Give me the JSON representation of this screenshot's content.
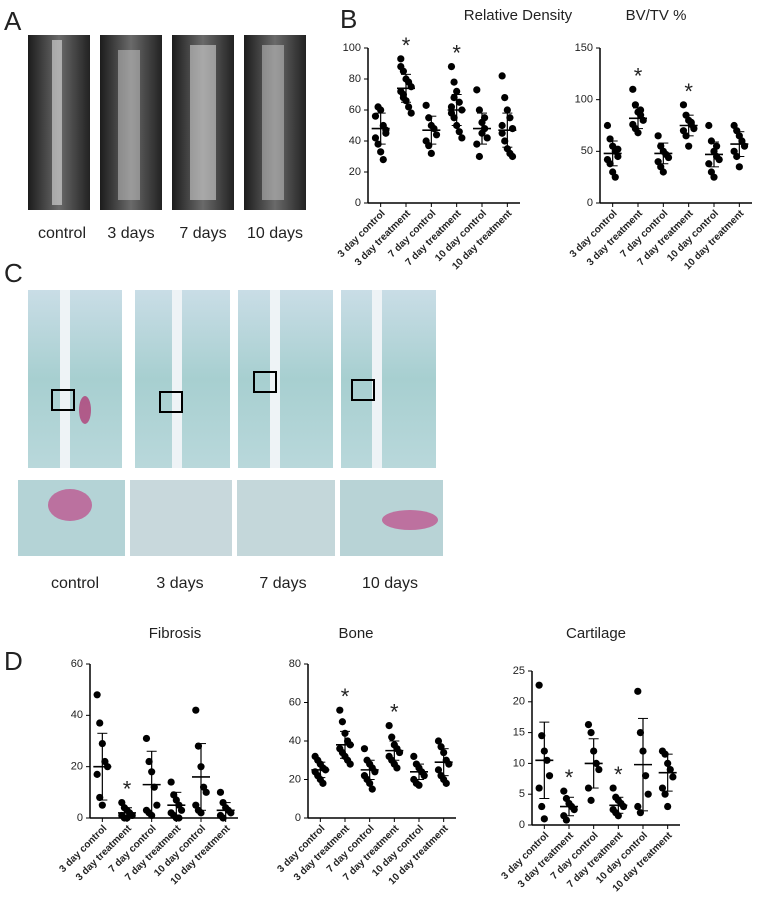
{
  "panels": {
    "labels": [
      "A",
      "B",
      "C",
      "D"
    ],
    "captions_a": [
      "control",
      "3  days",
      "7 days",
      "10 days"
    ],
    "captions_c": [
      "control",
      "3  days",
      "7 days",
      "10 days"
    ]
  },
  "chart_data": [
    {
      "type": "dot",
      "title": "Relative Density",
      "categories": [
        "3 day control",
        "3 day treatment",
        "7 day control",
        "7 day treatment",
        "10 day control",
        "10 day treatment"
      ],
      "points": [
        [
          56,
          62,
          60,
          50,
          47,
          42,
          38,
          33,
          28,
          45
        ],
        [
          93,
          85,
          80,
          78,
          75,
          72,
          70,
          66,
          62,
          58,
          88,
          68
        ],
        [
          63,
          55,
          50,
          48,
          44,
          40,
          37,
          32
        ],
        [
          88,
          78,
          72,
          65,
          60,
          58,
          55,
          50,
          46,
          42,
          62,
          68
        ],
        [
          73,
          60,
          52,
          48,
          42,
          38,
          30,
          45,
          55
        ],
        [
          82,
          68,
          60,
          55,
          48,
          45,
          40,
          35,
          32,
          30,
          50
        ]
      ],
      "means": [
        48,
        74,
        47,
        60,
        48,
        47
      ],
      "sd": [
        10,
        9,
        9,
        10,
        10,
        11
      ],
      "ylim": [
        0,
        100
      ],
      "yticks": [
        0,
        20,
        40,
        60,
        80,
        100
      ],
      "annotations": [
        {
          "category": "3 day treatment",
          "text": "*"
        },
        {
          "category": "7 day treatment",
          "text": "*"
        }
      ]
    },
    {
      "type": "dot",
      "title": "BV/TV %",
      "categories": [
        "3 day control",
        "3 day treatment",
        "7 day control",
        "7 day treatment",
        "10 day control",
        "10 day treatment"
      ],
      "points": [
        [
          75,
          62,
          55,
          50,
          45,
          42,
          38,
          30,
          25,
          52
        ],
        [
          110,
          95,
          88,
          85,
          80,
          76,
          72,
          68,
          90
        ],
        [
          65,
          55,
          50,
          47,
          44,
          40,
          35,
          30
        ],
        [
          95,
          85,
          80,
          76,
          72,
          70,
          65,
          55,
          78
        ],
        [
          75,
          60,
          50,
          45,
          42,
          38,
          30,
          25,
          55
        ],
        [
          75,
          70,
          65,
          60,
          55,
          50,
          45,
          35
        ]
      ],
      "means": [
        48,
        82,
        48,
        75,
        47,
        57
      ],
      "sd": [
        12,
        10,
        10,
        10,
        12,
        12
      ],
      "ylim": [
        0,
        150
      ],
      "yticks": [
        0,
        50,
        100,
        150
      ],
      "annotations": [
        {
          "category": "3 day treatment",
          "text": "*"
        },
        {
          "category": "7 day treatment",
          "text": "*"
        }
      ]
    },
    {
      "type": "dot",
      "title": "Fibrosis",
      "categories": [
        "3 day control",
        "3 day treatment",
        "7 day control",
        "7 day treatment",
        "10 day control",
        "10 day treatment"
      ],
      "points": [
        [
          48,
          37,
          29,
          22,
          20,
          17,
          8,
          5
        ],
        [
          6,
          4,
          3,
          2,
          1,
          1,
          0,
          0
        ],
        [
          31,
          22,
          18,
          12,
          5,
          3,
          2,
          1
        ],
        [
          14,
          9,
          7,
          5,
          3,
          2,
          1,
          0,
          0
        ],
        [
          42,
          28,
          20,
          12,
          10,
          5,
          3,
          2
        ],
        [
          10,
          6,
          4,
          3,
          2,
          1,
          0
        ]
      ],
      "means": [
        20,
        2,
        13,
        5,
        16,
        3
      ],
      "sd": [
        13,
        2,
        13,
        5,
        13,
        3
      ],
      "ylim": [
        0,
        60
      ],
      "yticks": [
        0,
        20,
        40,
        60
      ],
      "annotations": [
        {
          "category": "3 day treatment",
          "text": "*"
        }
      ]
    },
    {
      "type": "dot",
      "title": "Bone",
      "categories": [
        "3 day control",
        "3 day treatment",
        "7 day control",
        "7 day treatment",
        "10 day control",
        "10 day treatment"
      ],
      "points": [
        [
          32,
          30,
          28,
          26,
          25,
          24,
          22,
          20,
          18
        ],
        [
          56,
          50,
          44,
          40,
          38,
          36,
          34,
          32,
          30,
          28
        ],
        [
          36,
          30,
          28,
          26,
          24,
          22,
          20,
          18,
          15
        ],
        [
          48,
          42,
          38,
          36,
          34,
          32,
          30,
          28,
          26
        ],
        [
          32,
          28,
          26,
          24,
          22,
          20,
          18,
          17
        ],
        [
          40,
          37,
          34,
          30,
          28,
          25,
          22,
          20,
          18
        ]
      ],
      "means": [
        25,
        38,
        25,
        35,
        24,
        29
      ],
      "sd": [
        4,
        7,
        5,
        5,
        4,
        7
      ],
      "ylim": [
        0,
        80
      ],
      "yticks": [
        0,
        20,
        40,
        60,
        80
      ],
      "annotations": [
        {
          "category": "3 day treatment",
          "text": "*"
        },
        {
          "category": "7 day treatment",
          "text": "*"
        }
      ]
    },
    {
      "type": "dot",
      "title": "Cartilage",
      "categories": [
        "3 day control",
        "3 day treatment",
        "7 day control",
        "7 day treatment",
        "10 day control",
        "10 day treatment"
      ],
      "points": [
        [
          22.7,
          14.5,
          12,
          10.5,
          8,
          6,
          3,
          1
        ],
        [
          5.5,
          4.3,
          3.5,
          3,
          2.5,
          1.5,
          0.8
        ],
        [
          16.3,
          15,
          12,
          10,
          9,
          6,
          4
        ],
        [
          6,
          4.5,
          4,
          3.5,
          3,
          2.5,
          2,
          1.5
        ],
        [
          21.7,
          15,
          12,
          8,
          5,
          3,
          2
        ],
        [
          12,
          11.5,
          10,
          9,
          7.8,
          6,
          5,
          3
        ]
      ],
      "means": [
        10.5,
        3,
        10,
        3.2,
        9.8,
        8.5
      ],
      "sd": [
        6.2,
        1.5,
        4,
        1.3,
        7.5,
        3
      ],
      "ylim": [
        0,
        25
      ],
      "yticks": [
        0,
        5,
        10,
        15,
        20,
        25
      ],
      "annotations": [
        {
          "category": "3 day treatment",
          "text": "*"
        },
        {
          "category": "7 day treatment",
          "text": "*"
        }
      ]
    }
  ]
}
